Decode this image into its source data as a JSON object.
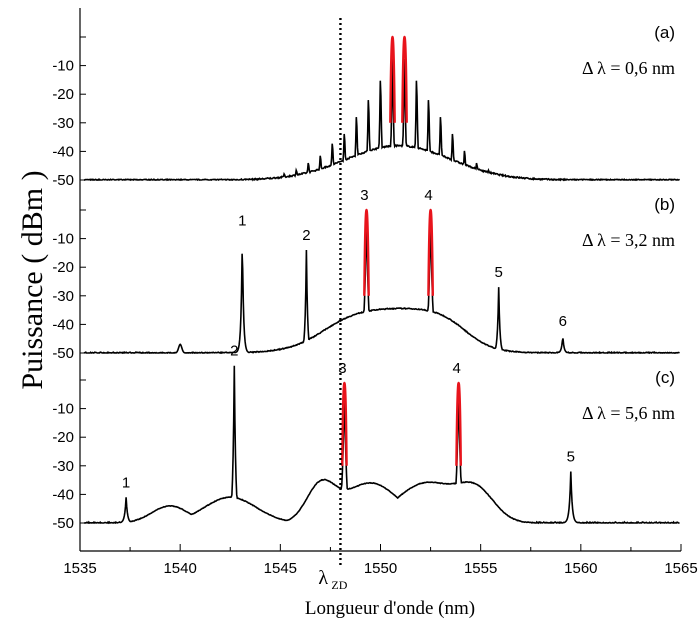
{
  "chart_data": {
    "type": "line",
    "xlabel": "Longueur d'onde (nm)",
    "ylabel": "Puissance ( dBm )",
    "xlim": [
      1535,
      1565
    ],
    "x_ticks": [
      "1535",
      "1540",
      "1545",
      "1550",
      "1555",
      "1560",
      "1565"
    ],
    "y_ticks": [
      "-10",
      "-20",
      "-30",
      "-40",
      "-50"
    ],
    "zero_dispersion": {
      "label": "λ",
      "subscript": "ZD",
      "x": 1548
    },
    "panels": [
      {
        "label": "(a)",
        "annotation": "Δ λ = 0,6 nm",
        "baseline_dBm": -50,
        "peaks": [
          {
            "x": 1545.2,
            "dBm": -47.5
          },
          {
            "x": 1545.8,
            "dBm": -46
          },
          {
            "x": 1546.4,
            "dBm": -43
          },
          {
            "x": 1547.0,
            "dBm": -40
          },
          {
            "x": 1547.6,
            "dBm": -35
          },
          {
            "x": 1548.2,
            "dBm": -31
          },
          {
            "x": 1548.8,
            "dBm": -24
          },
          {
            "x": 1549.4,
            "dBm": -17
          },
          {
            "x": 1550.0,
            "dBm": -9
          },
          {
            "x": 1550.6,
            "dBm": 0,
            "highlight": true
          },
          {
            "x": 1551.2,
            "dBm": 0,
            "highlight": true
          },
          {
            "x": 1551.8,
            "dBm": -9
          },
          {
            "x": 1552.4,
            "dBm": -17
          },
          {
            "x": 1553.0,
            "dBm": -24
          },
          {
            "x": 1553.6,
            "dBm": -31
          },
          {
            "x": 1554.2,
            "dBm": -38
          },
          {
            "x": 1554.8,
            "dBm": -43
          },
          {
            "x": 1555.4,
            "dBm": -46
          }
        ]
      },
      {
        "label": "(b)",
        "annotation": "Δ λ = 3,2 nm",
        "baseline_dBm": -50,
        "peaks": [
          {
            "x": 1543.1,
            "dBm": -9,
            "label": "1"
          },
          {
            "x": 1546.3,
            "dBm": -14,
            "label": "2"
          },
          {
            "x": 1549.3,
            "dBm": 0,
            "label": "3",
            "highlight": true
          },
          {
            "x": 1552.5,
            "dBm": 0,
            "label": "4",
            "highlight": true
          },
          {
            "x": 1555.9,
            "dBm": -27,
            "label": "5"
          },
          {
            "x": 1559.1,
            "dBm": -44,
            "label": "6"
          }
        ]
      },
      {
        "label": "(c)",
        "annotation": "Δ λ = 5,6 nm",
        "baseline_dBm": -50,
        "peaks": [
          {
            "x": 1537.3,
            "dBm": -41,
            "label": "1"
          },
          {
            "x": 1542.7,
            "dBm": 5,
            "label": "2"
          },
          {
            "x": 1548.2,
            "dBm": -1,
            "label": "3",
            "highlight": true
          },
          {
            "x": 1553.9,
            "dBm": -1,
            "label": "4",
            "highlight": true
          },
          {
            "x": 1559.5,
            "dBm": -32,
            "label": "5"
          }
        ]
      }
    ],
    "colors": {
      "trace": "#000000",
      "highlight": "#e8141c"
    }
  }
}
